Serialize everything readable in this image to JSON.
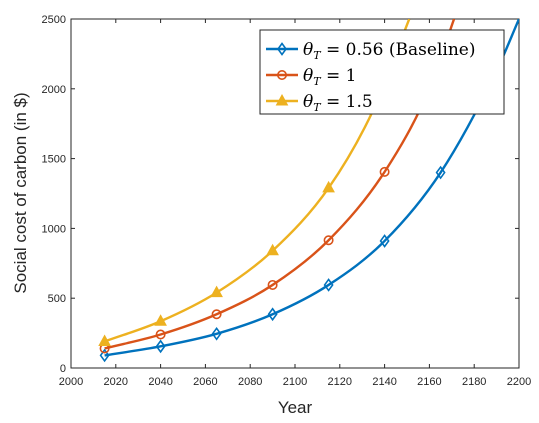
{
  "chart_data": {
    "type": "line",
    "xlabel": "Year",
    "ylabel": "Social cost of carbon (in $)",
    "xlim": [
      2000,
      2200
    ],
    "ylim": [
      0,
      2500
    ],
    "x_ticks": [
      "2000",
      "2020",
      "2040",
      "2060",
      "2080",
      "2100",
      "2120",
      "2140",
      "2160",
      "2180",
      "2200"
    ],
    "y_ticks": [
      "0",
      "500",
      "1000",
      "1500",
      "2000",
      "2500"
    ],
    "grid": false,
    "legend_placement": "top-right",
    "legend": [
      {
        "prefix": "θ",
        "sub": "T",
        "suffix": " = 0.56 (Baseline)"
      },
      {
        "prefix": "θ",
        "sub": "T",
        "suffix": " = 1"
      },
      {
        "prefix": "θ",
        "sub": "T",
        "suffix": " = 1.5"
      }
    ],
    "series": [
      {
        "theta": 0.56,
        "color": "#0072BD",
        "marker": "diamond",
        "markers_x": [
          2015,
          2040,
          2065,
          2090,
          2115,
          2140,
          2165
        ],
        "markers_y": [
          90,
          155,
          245,
          385,
          595,
          910,
          1400
        ],
        "curve_x": [
          2015,
          2040,
          2065,
          2090,
          2115,
          2140,
          2165,
          2190,
          2200
        ],
        "curve_y": [
          90,
          155,
          245,
          385,
          595,
          910,
          1400,
          2130,
          2500
        ]
      },
      {
        "theta": 1,
        "color": "#D95319",
        "marker": "circle",
        "markers_x": [
          2015,
          2040,
          2065,
          2090,
          2115,
          2140
        ],
        "markers_y": [
          140,
          240,
          385,
          595,
          915,
          1405
        ],
        "curve_x": [
          2015,
          2040,
          2065,
          2090,
          2115,
          2140,
          2160,
          2171
        ],
        "curve_y": [
          140,
          240,
          385,
          595,
          915,
          1405,
          2000,
          2500
        ]
      },
      {
        "theta": 1.5,
        "color": "#EDB120",
        "marker": "triangle",
        "markers_x": [
          2015,
          2040,
          2065,
          2090,
          2115
        ],
        "markers_y": [
          190,
          335,
          540,
          840,
          1290
        ],
        "curve_x": [
          2015,
          2040,
          2065,
          2090,
          2115,
          2135,
          2151
        ],
        "curve_y": [
          190,
          335,
          540,
          840,
          1290,
          1850,
          2500
        ]
      }
    ]
  }
}
